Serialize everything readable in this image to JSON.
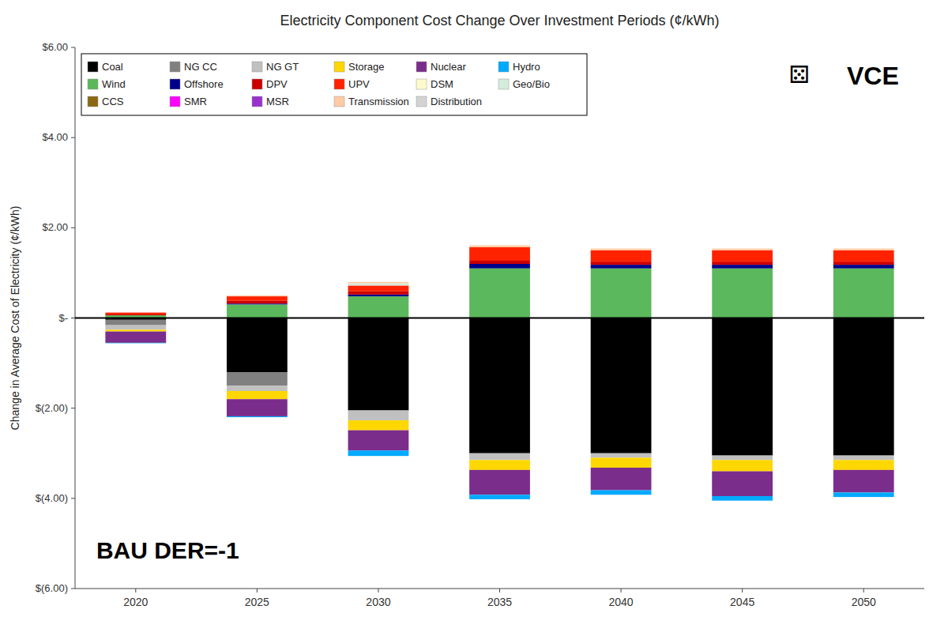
{
  "chart_data": {
    "type": "bar",
    "stacked": true,
    "title": "Electricity Component Cost Change Over Investment Periods (¢/kWh)",
    "ylabel": "Change in Average Cost of Electricity (¢/kWh)",
    "categories": [
      "2020",
      "2025",
      "2030",
      "2035",
      "2040",
      "2045",
      "2050"
    ],
    "ylim": [
      -6.0,
      6.0
    ],
    "yticks": [
      {
        "value": -6.0,
        "label": "$(6.00)"
      },
      {
        "value": -4.0,
        "label": "$(4.00)"
      },
      {
        "value": -2.0,
        "label": "$(2.00)"
      },
      {
        "value": 0.0,
        "label": "$-"
      },
      {
        "value": 2.0,
        "label": "$2.00"
      },
      {
        "value": 4.0,
        "label": "$4.00"
      },
      {
        "value": 6.0,
        "label": "$6.00"
      }
    ],
    "grid": false,
    "legend": "upper left",
    "annotations": [
      "VCE",
      "⚄",
      "BAU DER=-1"
    ],
    "series": [
      {
        "name": "Coal",
        "color": "#000000",
        "values": [
          -0.04,
          -1.2,
          -2.05,
          -3.0,
          -3.0,
          -3.05,
          -3.05
        ]
      },
      {
        "name": "NG CC",
        "color": "#808080",
        "values": [
          -0.12,
          -0.3,
          -0.0,
          -0.0,
          -0.0,
          -0.0,
          -0.0
        ]
      },
      {
        "name": "NG GT",
        "color": "#c0c0c0",
        "values": [
          -0.1,
          -0.12,
          -0.22,
          -0.15,
          -0.1,
          -0.1,
          -0.1
        ]
      },
      {
        "name": "Storage",
        "color": "#ffd700",
        "values": [
          -0.04,
          -0.18,
          -0.22,
          -0.22,
          -0.22,
          -0.25,
          -0.22
        ]
      },
      {
        "name": "Nuclear",
        "color": "#7b2d8b",
        "values": [
          -0.25,
          -0.38,
          -0.45,
          -0.55,
          -0.5,
          -0.55,
          -0.5
        ]
      },
      {
        "name": "Hydro",
        "color": "#00aaff",
        "values": [
          -0.01,
          -0.02,
          -0.12,
          -0.1,
          -0.1,
          -0.1,
          -0.1
        ]
      },
      {
        "name": "Wind",
        "color": "#5cb85c",
        "values": [
          0.06,
          0.3,
          0.48,
          1.1,
          1.1,
          1.1,
          1.1
        ]
      },
      {
        "name": "Offshore",
        "color": "#00008b",
        "values": [
          0.0,
          0.02,
          0.04,
          0.1,
          0.08,
          0.08,
          0.08
        ]
      },
      {
        "name": "DPV",
        "color": "#cc0000",
        "values": [
          0.02,
          0.06,
          0.07,
          0.07,
          0.07,
          0.07,
          0.07
        ]
      },
      {
        "name": "UPV",
        "color": "#ff2200",
        "values": [
          0.04,
          0.1,
          0.13,
          0.3,
          0.25,
          0.25,
          0.25
        ]
      },
      {
        "name": "DSM",
        "color": "#fffacd",
        "values": [
          0.0,
          0.0,
          0.0,
          0.0,
          0.0,
          0.0,
          0.0
        ]
      },
      {
        "name": "Geo/Bio",
        "color": "#d4edda",
        "values": [
          0.0,
          0.0,
          0.05,
          0.0,
          0.0,
          0.0,
          0.0
        ]
      },
      {
        "name": "CCS",
        "color": "#8b6914",
        "values": [
          0.0,
          0.0,
          0.0,
          0.0,
          0.0,
          0.0,
          0.0
        ]
      },
      {
        "name": "SMR",
        "color": "#ff00ff",
        "values": [
          0.0,
          0.0,
          0.0,
          0.0,
          0.0,
          0.0,
          0.0
        ]
      },
      {
        "name": "MSR",
        "color": "#9932cc",
        "values": [
          0.0,
          0.0,
          0.0,
          0.0,
          0.0,
          0.0,
          0.0
        ]
      },
      {
        "name": "Transmission",
        "color": "#ffcba4",
        "values": [
          0.0,
          0.02,
          0.03,
          0.04,
          0.04,
          0.04,
          0.04
        ]
      },
      {
        "name": "Distribution",
        "color": "#d3d3d3",
        "values": [
          0.0,
          0.0,
          0.0,
          0.0,
          0.0,
          0.0,
          0.0
        ]
      }
    ]
  }
}
